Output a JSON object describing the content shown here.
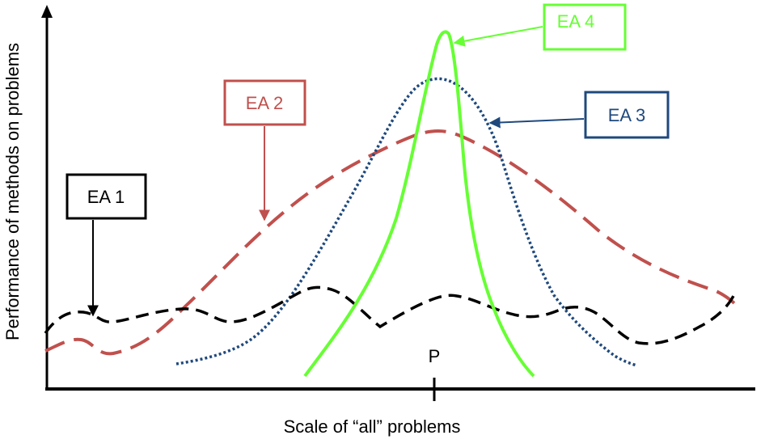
{
  "x_axis_label": "Scale of “all” problems",
  "y_axis_label": "Performance of methods on problems",
  "peak_marker_label": "P",
  "curves": [
    {
      "id": "ea1",
      "label": "EA 1",
      "color": "#000000",
      "style": "dashed"
    },
    {
      "id": "ea2",
      "label": "EA 2",
      "color": "#C0504D",
      "style": "long-dashed"
    },
    {
      "id": "ea3",
      "label": "EA 3",
      "color": "#1F497D",
      "style": "dotted"
    },
    {
      "id": "ea4",
      "label": "EA 4",
      "color": "#66FF33",
      "style": "solid"
    }
  ]
}
